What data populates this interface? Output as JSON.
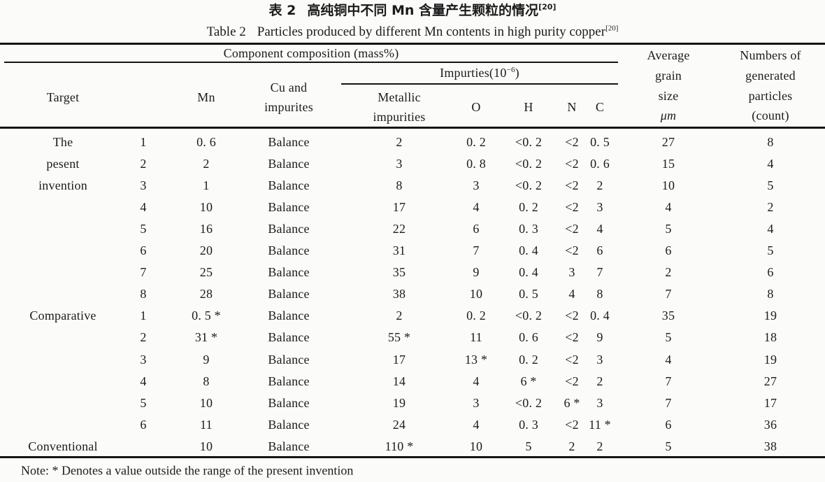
{
  "titles": {
    "zh_label": "表 2",
    "zh_text": "高纯铜中不同 Mn 含量产生颗粒的情况",
    "zh_ref": "[20]",
    "en_label": "Table 2",
    "en_text": "Particles produced by different Mn contents in high purity copper",
    "en_ref": "[20]"
  },
  "header": {
    "component_composition": "Component composition (mass%)",
    "target": "Target",
    "mn": "Mn",
    "cu_lines": [
      "Cu and",
      "impurites"
    ],
    "impurities_label": "Impurties(10",
    "impurities_sup": "−6",
    "impurities_close": ")",
    "metallic_lines": [
      "Metallic",
      "impurities"
    ],
    "o": "O",
    "h": "H",
    "n": "N",
    "c": "C",
    "grain_lines": [
      "Average",
      "grain",
      "size",
      "μm"
    ],
    "particles_lines": [
      "Numbers of",
      "generated",
      "particles",
      "(count)"
    ]
  },
  "rows": [
    {
      "target": "The",
      "num": "1",
      "mn": "0. 6",
      "cu": "Balance",
      "metallic": "2",
      "o": "0. 2",
      "h": "<0. 2",
      "n": "<2",
      "c": "0. 5",
      "grain": "27",
      "particles": "8"
    },
    {
      "target": "pesent",
      "num": "2",
      "mn": "2",
      "cu": "Balance",
      "metallic": "3",
      "o": "0. 8",
      "h": "<0. 2",
      "n": "<2",
      "c": "0. 6",
      "grain": "15",
      "particles": "4"
    },
    {
      "target": "invention",
      "num": "3",
      "mn": "1",
      "cu": "Balance",
      "metallic": "8",
      "o": "3",
      "h": "<0. 2",
      "n": "<2",
      "c": "2",
      "grain": "10",
      "particles": "5"
    },
    {
      "target": "",
      "num": "4",
      "mn": "10",
      "cu": "Balance",
      "metallic": "17",
      "o": "4",
      "h": "0. 2",
      "n": "<2",
      "c": "3",
      "grain": "4",
      "particles": "2"
    },
    {
      "target": "",
      "num": "5",
      "mn": "16",
      "cu": "Balance",
      "metallic": "22",
      "o": "6",
      "h": "0. 3",
      "n": "<2",
      "c": "4",
      "grain": "5",
      "particles": "4"
    },
    {
      "target": "",
      "num": "6",
      "mn": "20",
      "cu": "Balance",
      "metallic": "31",
      "o": "7",
      "h": "0. 4",
      "n": "<2",
      "c": "6",
      "grain": "6",
      "particles": "5"
    },
    {
      "target": "",
      "num": "7",
      "mn": "25",
      "cu": "Balance",
      "metallic": "35",
      "o": "9",
      "h": "0. 4",
      "n": "3",
      "c": "7",
      "grain": "2",
      "particles": "6"
    },
    {
      "target": "",
      "num": "8",
      "mn": "28",
      "cu": "Balance",
      "metallic": "38",
      "o": "10",
      "h": "0. 5",
      "n": "4",
      "c": "8",
      "grain": "7",
      "particles": "8"
    },
    {
      "target": "Comparative",
      "num": "1",
      "mn": "0. 5 *",
      "cu": "Balance",
      "metallic": "2",
      "o": "0. 2",
      "h": "<0. 2",
      "n": "<2",
      "c": "0. 4",
      "grain": "35",
      "particles": "19"
    },
    {
      "target": "",
      "num": "2",
      "mn": "31 *",
      "cu": "Balance",
      "metallic": "55 *",
      "o": "11",
      "h": "0. 6",
      "n": "<2",
      "c": "9",
      "grain": "5",
      "particles": "18"
    },
    {
      "target": "",
      "num": "3",
      "mn": "9",
      "cu": "Balance",
      "metallic": "17",
      "o": "13 *",
      "h": "0. 2",
      "n": "<2",
      "c": "3",
      "grain": "4",
      "particles": "19"
    },
    {
      "target": "",
      "num": "4",
      "mn": "8",
      "cu": "Balance",
      "metallic": "14",
      "o": "4",
      "h": "6 *",
      "n": "<2",
      "c": "2",
      "grain": "7",
      "particles": "27"
    },
    {
      "target": "",
      "num": "5",
      "mn": "10",
      "cu": "Balance",
      "metallic": "19",
      "o": "3",
      "h": "<0. 2",
      "n": "6 *",
      "c": "3",
      "grain": "7",
      "particles": "17"
    },
    {
      "target": "",
      "num": "6",
      "mn": "11",
      "cu": "Balance",
      "metallic": "24",
      "o": "4",
      "h": "0. 3",
      "n": "<2",
      "c": "11 *",
      "grain": "6",
      "particles": "36"
    },
    {
      "target": "Conventional",
      "num": "",
      "mn": "10",
      "cu": "Balance",
      "metallic": "110 *",
      "o": "10",
      "h": "5",
      "n": "2",
      "c": "2",
      "grain": "5",
      "particles": "38"
    }
  ],
  "note": {
    "text": "Note: * Denotes a value outside the range of the present invention"
  },
  "colors": {
    "background": "#fbfbf9",
    "text": "#1b1b1b",
    "rule": "#141414"
  }
}
